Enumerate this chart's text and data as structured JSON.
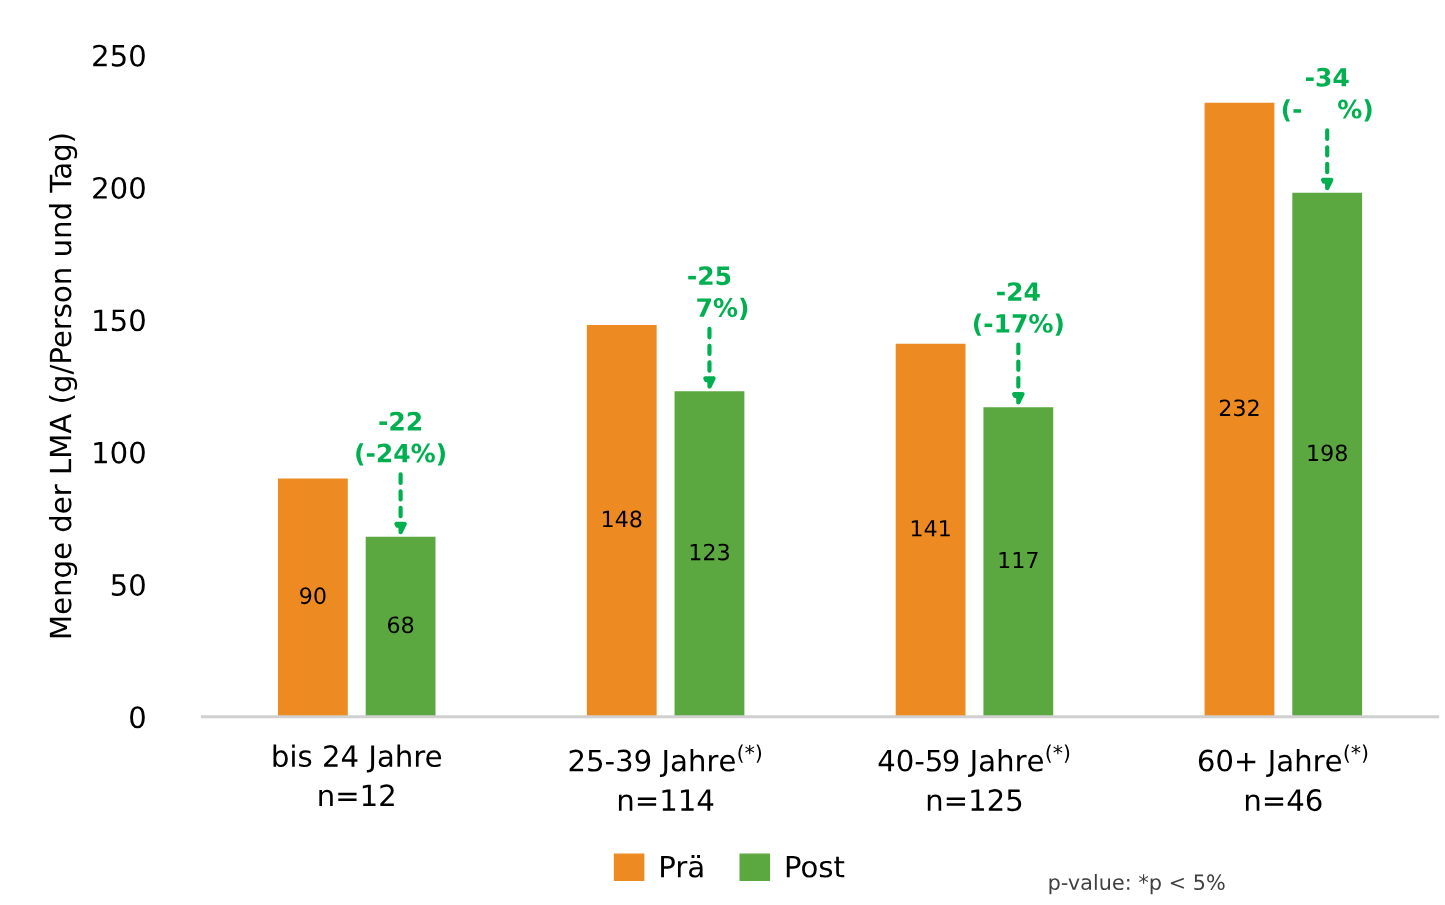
{
  "chart_data": {
    "type": "bar",
    "ylabel": "Menge der LMA (g/Person und Tag)",
    "categories": [
      "bis 24 Jahre\nn=12",
      "25-39 Jahre$^{(*)}$\nn=114",
      "40-59 Jahre$^{(*)}$\nn=125",
      "60+ Jahre$^{(*)}$\nn=46"
    ],
    "series": [
      {
        "name": "Prä",
        "color": "#ee8a22",
        "values": [
          90,
          148,
          141,
          232
        ]
      },
      {
        "name": "Post",
        "color": "#5aa83f",
        "values": [
          68,
          123,
          117,
          198
        ]
      }
    ],
    "data_labels": true,
    "ylim": [
      0,
      250
    ],
    "yticks": [
      0,
      50,
      100,
      150,
      200,
      250
    ],
    "grid": false,
    "legend": "bottom",
    "annotations": [
      "-22\n(-24%)",
      "-25\n   7%)",
      "-24\n(-17%)",
      "-34\n(-    %)",
      "p-value: *p < 5%"
    ]
  }
}
